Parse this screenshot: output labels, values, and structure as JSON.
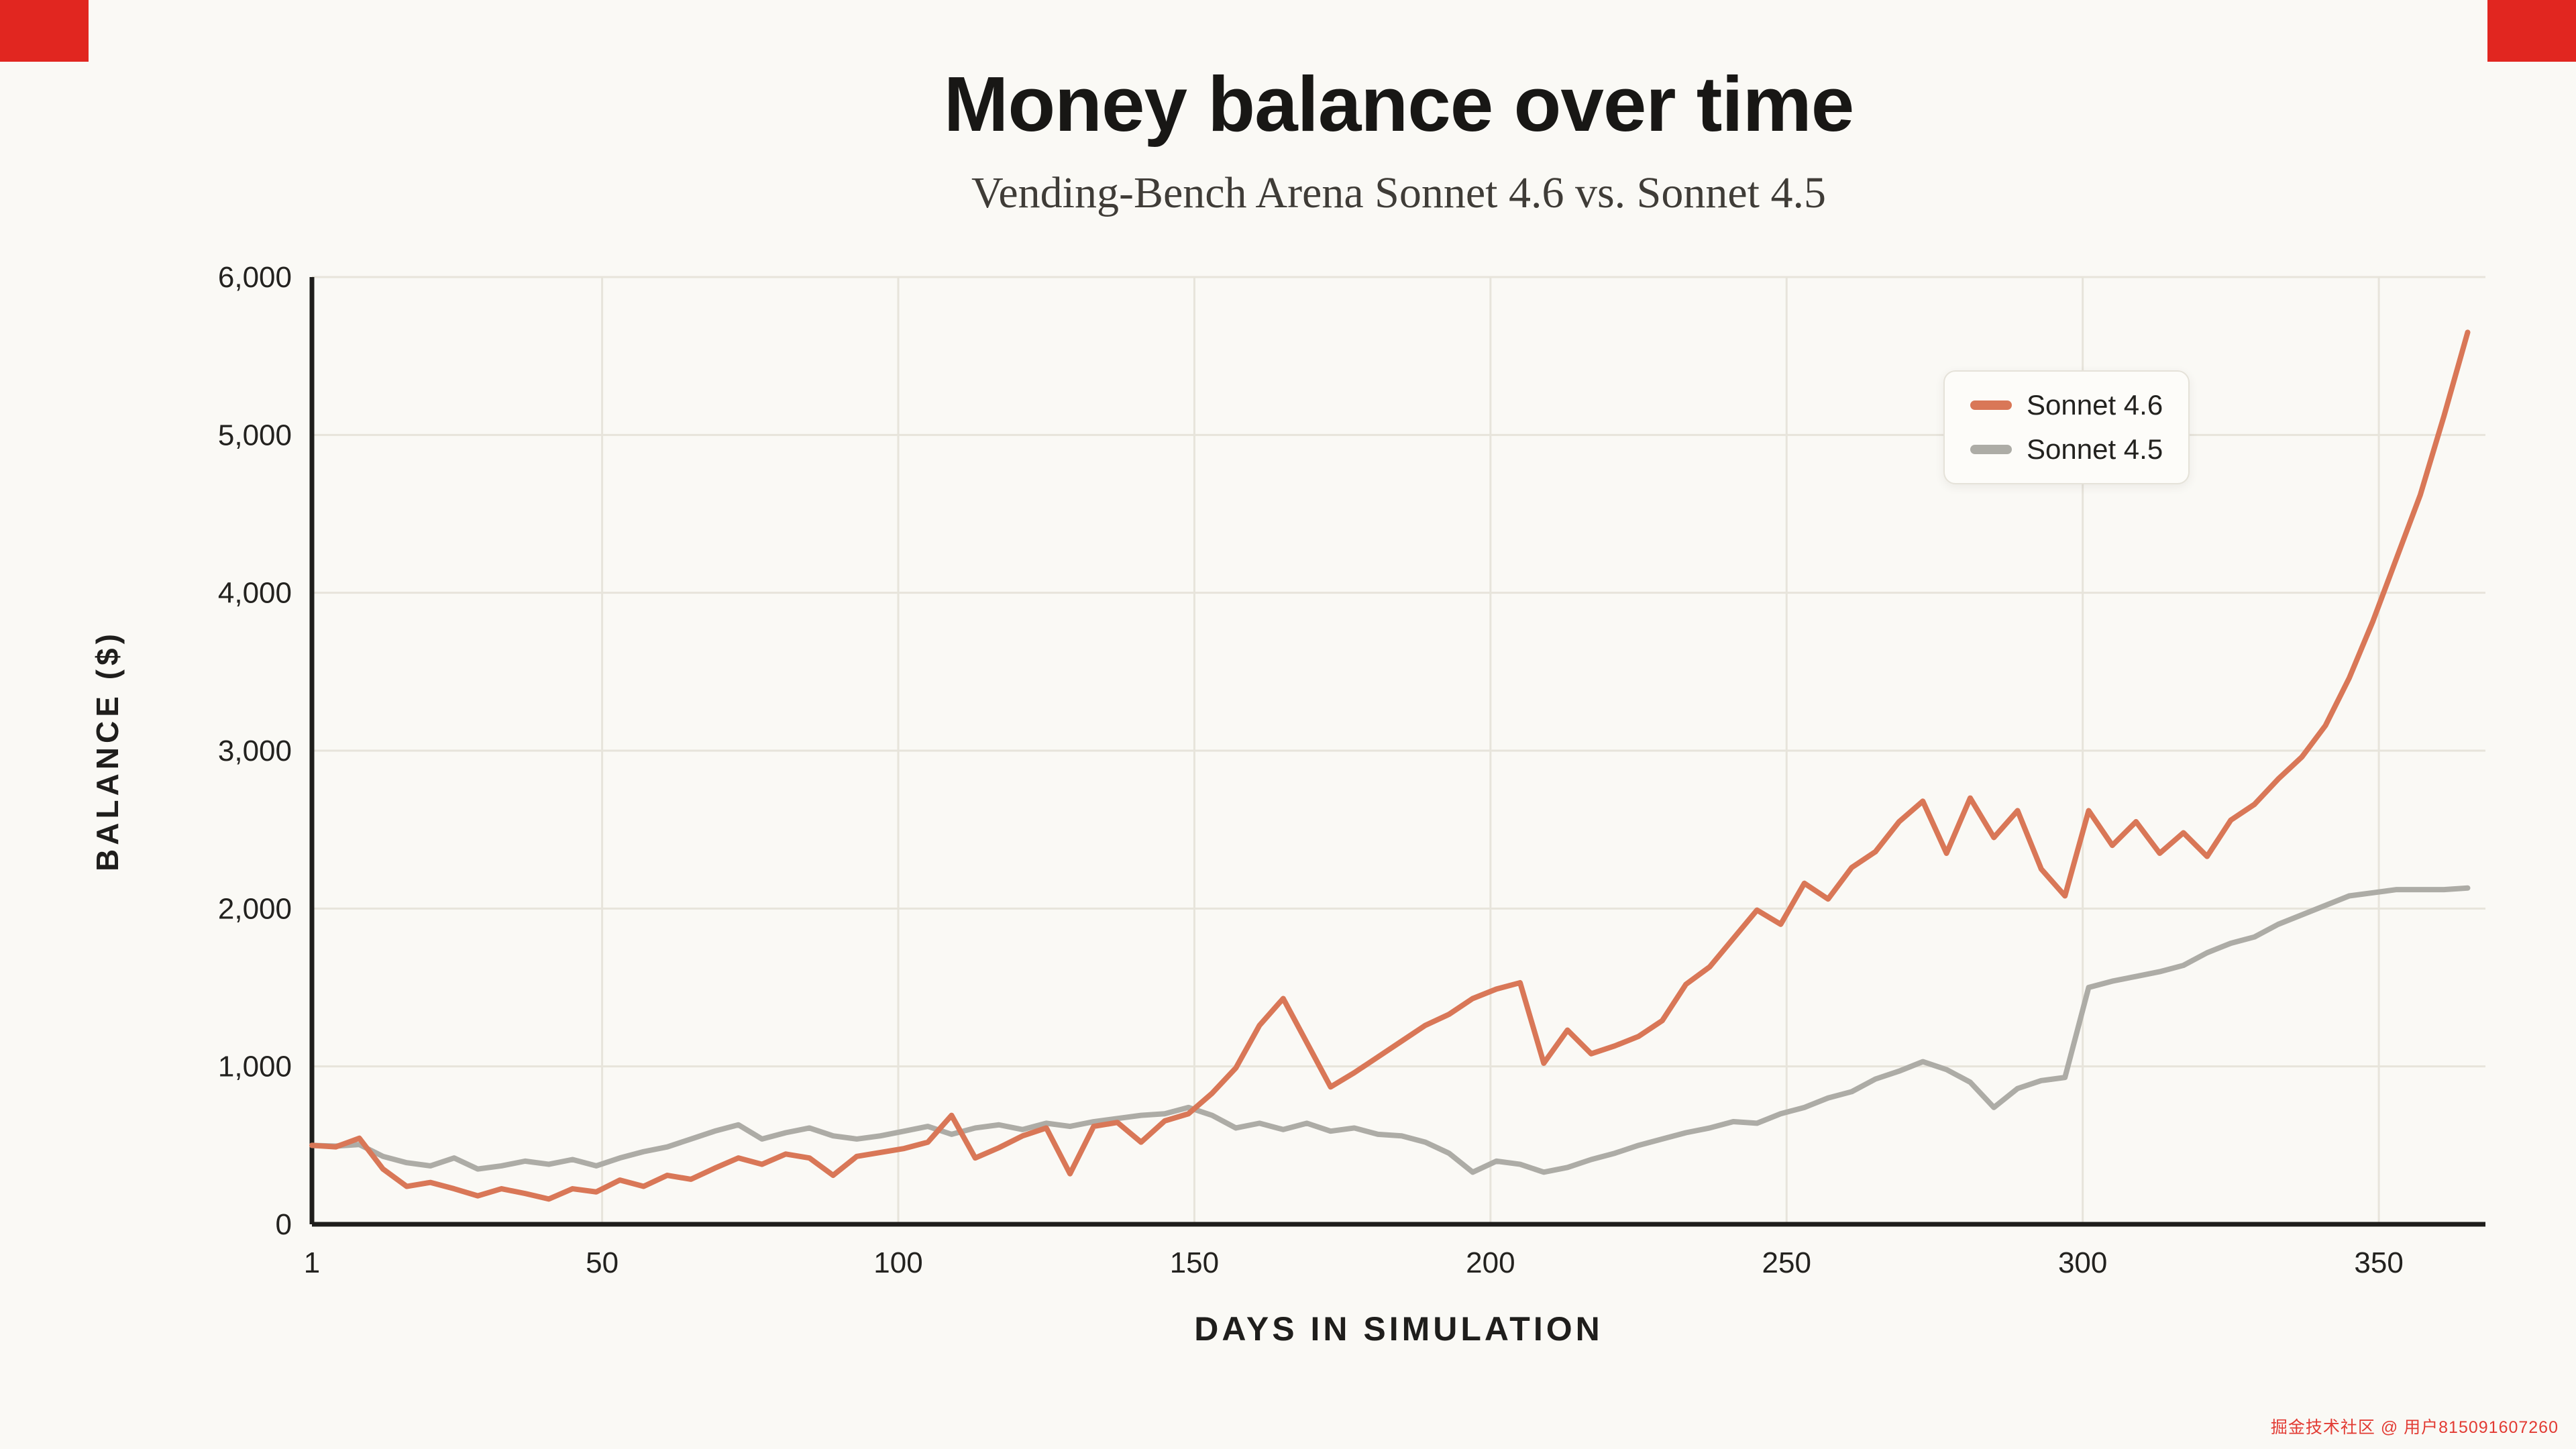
{
  "page": {
    "background_color": "#FAF9F5",
    "corner_mark_color": "#E12620",
    "watermark_text": "掘金技术社区 @ 用户815091607260",
    "watermark_color": "#E23B33"
  },
  "chart_data": {
    "type": "line",
    "title": "Money balance over time",
    "subtitle": "Vending-Bench Arena Sonnet 4.6 vs. Sonnet 4.5",
    "xlabel": "DAYS IN SIMULATION",
    "ylabel": "BALANCE ($)",
    "xlim": [
      1,
      368
    ],
    "ylim": [
      0,
      6000
    ],
    "xticks": [
      1,
      50,
      100,
      150,
      200,
      250,
      300,
      350
    ],
    "xtick_labels": [
      "1",
      "50",
      "100",
      "150",
      "200",
      "250",
      "300",
      "350"
    ],
    "yticks": [
      0,
      1000,
      2000,
      3000,
      4000,
      5000,
      6000
    ],
    "ytick_labels": [
      "0",
      "1,000",
      "2,000",
      "3,000",
      "4,000",
      "5,000",
      "6,000"
    ],
    "grid": true,
    "grid_color": "#E7E4DB",
    "axis_color": "#1F1E1C",
    "tick_text_color": "#23221F",
    "legend_position": "top-right",
    "x": [
      1,
      5,
      9,
      13,
      17,
      21,
      25,
      29,
      33,
      37,
      41,
      45,
      49,
      53,
      57,
      61,
      65,
      69,
      73,
      77,
      81,
      85,
      89,
      93,
      97,
      101,
      105,
      109,
      113,
      117,
      121,
      125,
      129,
      133,
      137,
      141,
      145,
      149,
      153,
      157,
      161,
      165,
      169,
      173,
      177,
      181,
      185,
      189,
      193,
      197,
      201,
      205,
      209,
      213,
      217,
      221,
      225,
      229,
      233,
      237,
      241,
      245,
      249,
      253,
      257,
      261,
      265,
      269,
      273,
      277,
      281,
      285,
      289,
      293,
      297,
      301,
      305,
      309,
      313,
      317,
      321,
      325,
      329,
      333,
      337,
      341,
      345,
      349,
      353,
      357,
      361,
      365
    ],
    "series": [
      {
        "name": "Sonnet 4.6",
        "color": "#D97757",
        "values": [
          500,
          490,
          545,
          350,
          240,
          265,
          225,
          180,
          225,
          195,
          160,
          225,
          205,
          280,
          240,
          310,
          285,
          355,
          420,
          380,
          445,
          420,
          310,
          430,
          455,
          480,
          520,
          690,
          420,
          485,
          560,
          610,
          320,
          620,
          645,
          520,
          655,
          700,
          830,
          990,
          1260,
          1430,
          1150,
          870,
          960,
          1060,
          1160,
          1260,
          1330,
          1430,
          1490,
          1530,
          1020,
          1230,
          1080,
          1130,
          1190,
          1290,
          1520,
          1630,
          1810,
          1990,
          1900,
          2160,
          2060,
          2260,
          2360,
          2550,
          2680,
          2350,
          2700,
          2450,
          2620,
          2250,
          2080,
          2620,
          2400,
          2550,
          2350,
          2480,
          2330,
          2560,
          2660,
          2820,
          2960,
          3160,
          3460,
          3820,
          4220,
          4620,
          5120,
          5650
        ]
      },
      {
        "name": "Sonnet 4.5",
        "color": "#ADACA6",
        "values": [
          500,
          495,
          505,
          430,
          390,
          370,
          420,
          350,
          370,
          400,
          380,
          410,
          370,
          420,
          460,
          490,
          540,
          590,
          630,
          540,
          580,
          610,
          560,
          540,
          560,
          590,
          620,
          570,
          610,
          630,
          600,
          640,
          620,
          650,
          670,
          690,
          700,
          740,
          690,
          610,
          640,
          600,
          640,
          590,
          610,
          570,
          560,
          520,
          450,
          330,
          400,
          380,
          330,
          360,
          410,
          450,
          500,
          540,
          580,
          610,
          650,
          640,
          700,
          740,
          800,
          840,
          920,
          970,
          1030,
          980,
          900,
          740,
          860,
          910,
          930,
          1500,
          1540,
          1570,
          1600,
          1640,
          1720,
          1780,
          1820,
          1900,
          1960,
          2020,
          2080,
          2100,
          2120,
          2120,
          2120,
          2130
        ]
      }
    ]
  }
}
